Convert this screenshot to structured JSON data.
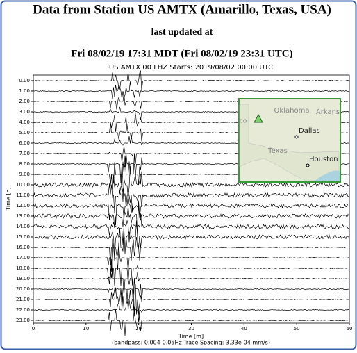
{
  "header": {
    "title": "Data from Station US AMTX (Amarillo, Texas, USA)",
    "subtitle": "last updated at",
    "timestamp": "Fri 08/02/19 17:31 MDT (Fri 08/02/19 23:31 UTC)"
  },
  "chart_data": {
    "type": "helicorder",
    "title": "US AMTX 00 LHZ  Starts: 2019/08/02 00:00 UTC",
    "x_label": "Time [m]",
    "y_label": "Time [h]",
    "caption": "(bandpass: 0.004-0.05Hz  Trace Spacing: 3.33e-04 mm/s)",
    "categories": [
      "0.00",
      "1.00",
      "2.00",
      "3.00",
      "4.00",
      "5.00",
      "6.00",
      "7.00",
      "8.00",
      "9.00",
      "10.00",
      "11.00",
      "12.00",
      "13.00",
      "14.00",
      "15.00",
      "16.00",
      "17.00",
      "18.00",
      "19.00",
      "20.00",
      "21.00",
      "22.00",
      "23.00"
    ],
    "xlim": [
      0,
      60
    ],
    "xticks": [
      0,
      10,
      20,
      30,
      40,
      50,
      60
    ]
  },
  "map": {
    "labels": [
      "Oklahoma",
      "Arkans",
      "co",
      "Dallas",
      "Texas",
      "Houston"
    ]
  }
}
